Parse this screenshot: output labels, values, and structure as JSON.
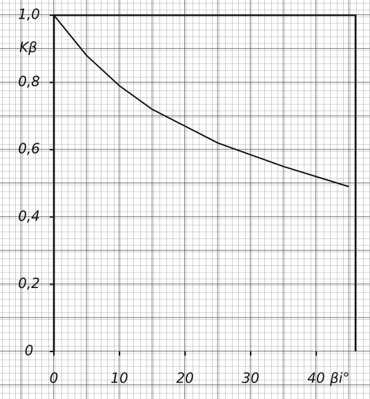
{
  "chart_data": {
    "type": "line",
    "x_label": "βi°",
    "y_label": "Kβ",
    "x": [
      0,
      5,
      10,
      15,
      20,
      25,
      30,
      35,
      40,
      45
    ],
    "series": [
      {
        "color": "#111111",
        "values": [
          1.0,
          0.88,
          0.79,
          0.72,
          0.67,
          0.62,
          0.585,
          0.55,
          0.52,
          0.49
        ]
      }
    ],
    "xlim": [
      0,
      46
    ],
    "ylim": [
      0,
      1.0
    ],
    "xticks": [
      0,
      10,
      20,
      30,
      40
    ],
    "yticks": [
      0,
      {
        "value": 0.2,
        "label": "0,2"
      },
      {
        "value": 0.4,
        "label": "0,4"
      },
      {
        "value": 0.6,
        "label": "0,6"
      },
      {
        "value": 0.8,
        "label": "0,8"
      },
      {
        "value": 1.0,
        "label": "1,0"
      }
    ]
  }
}
